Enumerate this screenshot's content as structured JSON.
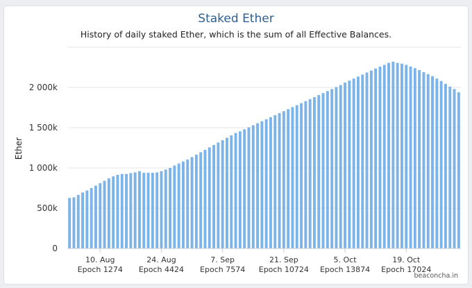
{
  "chart_data": {
    "type": "bar",
    "title": "Staked Ether",
    "subtitle": "History of daily staked Ether, which is the sum of all Effective Balances.",
    "ylabel": "Ether",
    "xlabel": "",
    "ylim": [
      0,
      2500000
    ],
    "y_ticks": [
      {
        "value": 0,
        "label": "0"
      },
      {
        "value": 500000,
        "label": "500k"
      },
      {
        "value": 1000000,
        "label": "1 000k"
      },
      {
        "value": 1500000,
        "label": "1 500k"
      },
      {
        "value": 2000000,
        "label": "2 000k"
      }
    ],
    "x_ticks": [
      {
        "index": 7,
        "line1": "10. Aug",
        "line2": "Epoch 1274"
      },
      {
        "index": 21,
        "line1": "24. Aug",
        "line2": "Epoch 4424"
      },
      {
        "index": 35,
        "line1": "7. Sep",
        "line2": "Epoch 7574"
      },
      {
        "index": 49,
        "line1": "21. Sep",
        "line2": "Epoch 10724"
      },
      {
        "index": 63,
        "line1": "5. Oct",
        "line2": "Epoch 13874"
      },
      {
        "index": 77,
        "line1": "19. Oct",
        "line2": "Epoch 17024"
      }
    ],
    "bar_color": "#7cb3e8",
    "grid": true,
    "values": [
      627000,
      635000,
      665000,
      695000,
      720000,
      750000,
      780000,
      810000,
      840000,
      870000,
      895000,
      915000,
      925000,
      925000,
      935000,
      945000,
      960000,
      940000,
      940000,
      940000,
      945000,
      960000,
      980000,
      1000000,
      1030000,
      1055000,
      1080000,
      1105000,
      1135000,
      1165000,
      1195000,
      1225000,
      1255000,
      1285000,
      1315000,
      1345000,
      1375000,
      1405000,
      1435000,
      1455000,
      1480000,
      1505000,
      1530000,
      1555000,
      1580000,
      1605000,
      1630000,
      1655000,
      1680000,
      1705000,
      1730000,
      1755000,
      1780000,
      1805000,
      1830000,
      1855000,
      1880000,
      1905000,
      1930000,
      1955000,
      1980000,
      2005000,
      2030000,
      2060000,
      2085000,
      2110000,
      2135000,
      2160000,
      2185000,
      2210000,
      2235000,
      2258000,
      2280000,
      2305000,
      2320000,
      2305000,
      2295000,
      2280000,
      2260000,
      2240000,
      2215000,
      2190000,
      2165000,
      2140000,
      2110000,
      2080000,
      2045000,
      2010000,
      1980000,
      1940000
    ]
  },
  "credits": "beaconcha.in"
}
